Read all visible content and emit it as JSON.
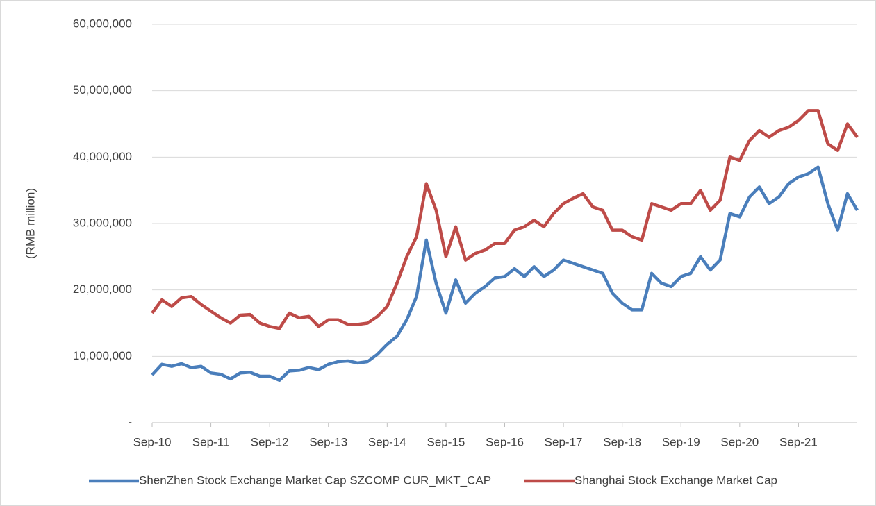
{
  "chart_data": {
    "type": "line",
    "y_axis_label": "(RMB million)",
    "categories": [
      "Sep-10",
      null,
      null,
      null,
      null,
      null,
      "Sep-11",
      null,
      null,
      null,
      null,
      null,
      "Sep-12",
      null,
      null,
      null,
      null,
      null,
      "Sep-13",
      null,
      null,
      null,
      null,
      null,
      "Sep-14",
      null,
      null,
      null,
      null,
      null,
      "Sep-15",
      null,
      null,
      null,
      null,
      null,
      "Sep-16",
      null,
      null,
      null,
      null,
      null,
      "Sep-17",
      null,
      null,
      null,
      null,
      null,
      "Sep-18",
      null,
      null,
      null,
      null,
      null,
      "Sep-19",
      null,
      null,
      null,
      null,
      null,
      "Sep-20",
      null,
      null,
      null,
      null,
      null,
      "Sep-21",
      null,
      null,
      null,
      null,
      null,
      null
    ],
    "series": [
      {
        "name": "ShenZhen Stock Exchange Market Cap SZCOMP CUR_MKT_CAP",
        "color": "#4a7ebb",
        "values": [
          7200000,
          8800000,
          8500000,
          8900000,
          8300000,
          8500000,
          7500000,
          7300000,
          6600000,
          7500000,
          7600000,
          7000000,
          7000000,
          6400000,
          7800000,
          7900000,
          8300000,
          8000000,
          8800000,
          9200000,
          9300000,
          9000000,
          9200000,
          10300000,
          11800000,
          13000000,
          15500000,
          19000000,
          27500000,
          21000000,
          16500000,
          21500000,
          18000000,
          19500000,
          20500000,
          21800000,
          22000000,
          23200000,
          22000000,
          23500000,
          22000000,
          23000000,
          24500000,
          24000000,
          23500000,
          23000000,
          22500000,
          19500000,
          18000000,
          17000000,
          17000000,
          22500000,
          21000000,
          20500000,
          22000000,
          22500000,
          25000000,
          23000000,
          24500000,
          31500000,
          31000000,
          34000000,
          35500000,
          33000000,
          34000000,
          36000000,
          37000000,
          37500000,
          38500000,
          33000000,
          29000000,
          34500000,
          32000000
        ]
      },
      {
        "name": "Shanghai Stock Exchange Market Cap",
        "color": "#be4b48",
        "values": [
          16500000,
          18500000,
          17500000,
          18800000,
          19000000,
          17800000,
          16800000,
          15800000,
          15000000,
          16200000,
          16300000,
          15000000,
          14500000,
          14200000,
          16500000,
          15800000,
          16000000,
          14500000,
          15500000,
          15500000,
          14800000,
          14800000,
          15000000,
          16000000,
          17500000,
          21000000,
          25000000,
          28000000,
          36000000,
          32000000,
          25000000,
          29500000,
          24500000,
          25500000,
          26000000,
          27000000,
          27000000,
          29000000,
          29500000,
          30500000,
          29500000,
          31500000,
          33000000,
          33800000,
          34500000,
          32500000,
          32000000,
          29000000,
          29000000,
          28000000,
          27500000,
          33000000,
          32500000,
          32000000,
          33000000,
          33000000,
          35000000,
          32000000,
          33500000,
          40000000,
          39500000,
          42500000,
          44000000,
          43000000,
          44000000,
          44500000,
          45500000,
          47000000,
          47000000,
          42000000,
          41000000,
          45000000,
          43000000
        ]
      }
    ],
    "ylim": [
      0,
      60000000
    ],
    "yticks": [
      {
        "value": 0,
        "label": "-"
      },
      {
        "value": 10000000,
        "label": "10,000,000"
      },
      {
        "value": 20000000,
        "label": "20,000,000"
      },
      {
        "value": 30000000,
        "label": "30,000,000"
      },
      {
        "value": 40000000,
        "label": "40,000,000"
      },
      {
        "value": 50000000,
        "label": "50,000,000"
      },
      {
        "value": 60000000,
        "label": "60,000,000"
      }
    ],
    "grid": true,
    "legend": "bottom"
  }
}
